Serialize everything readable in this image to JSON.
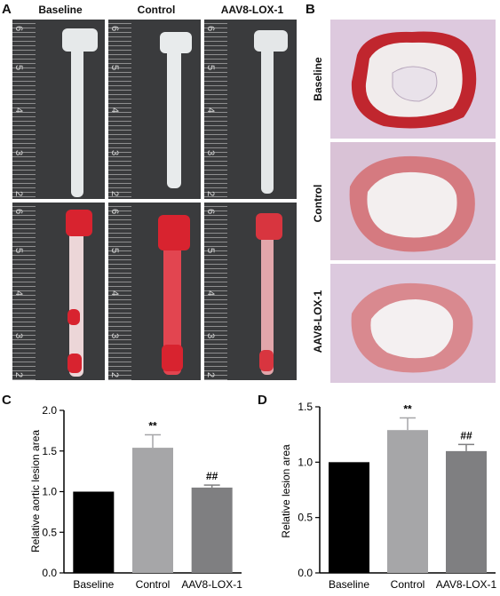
{
  "panels": {
    "A": "A",
    "B": "B",
    "C": "C",
    "D": "D"
  },
  "panel_a": {
    "columns": [
      "Baseline",
      "Control",
      "AAV8-LOX-1"
    ],
    "ruler_numbers_top": [
      "6",
      "5",
      "4",
      "3",
      "2"
    ],
    "ruler_numbers_bottom": [
      "6",
      "5",
      "4",
      "3",
      "2"
    ]
  },
  "panel_b": {
    "rows": [
      "Baseline",
      "Control",
      "AAV8-LOX-1"
    ]
  },
  "colors": {
    "baseline": "#000000",
    "control": "#a6a6a8",
    "aav8": "#7f7f81",
    "oil_red": "#d8232f"
  },
  "chart_data": [
    {
      "type": "bar",
      "panel": "C",
      "categories": [
        "Baseline",
        "Control",
        "AAV8-LOX-1"
      ],
      "values": [
        1.0,
        1.54,
        1.05
      ],
      "errors": [
        0.0,
        0.16,
        0.03
      ],
      "annotations": [
        "",
        "**",
        "##"
      ],
      "ylabel": "Relative aortic lesion area",
      "ylim": [
        0,
        2.0
      ],
      "yticks": [
        "0.0",
        "0.5",
        "1.0",
        "1.5",
        "2.0"
      ]
    },
    {
      "type": "bar",
      "panel": "D",
      "categories": [
        "Baseline",
        "Control",
        "AAV8-LOX-1"
      ],
      "values": [
        1.0,
        1.29,
        1.1
      ],
      "errors": [
        0.0,
        0.11,
        0.06
      ],
      "annotations": [
        "",
        "**",
        "##"
      ],
      "ylabel": "Relative lesion  area",
      "ylim": [
        0,
        1.5
      ],
      "yticks": [
        "0.0",
        "0.5",
        "1.0",
        "1.5"
      ]
    }
  ]
}
